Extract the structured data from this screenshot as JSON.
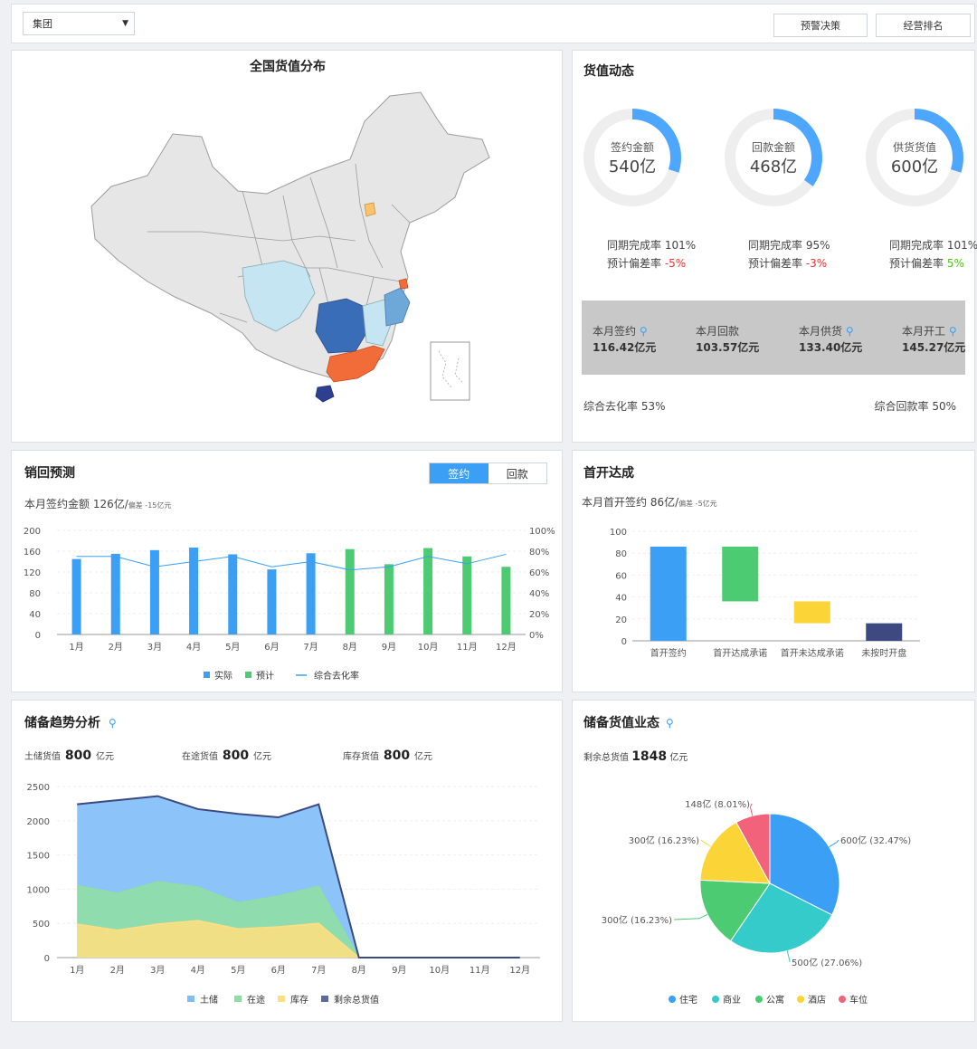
{
  "toolbar": {
    "group_select": "集团",
    "btn_warning": "预警决策",
    "btn_ranking": "经营排名"
  },
  "map": {
    "title": "全国货值分布"
  },
  "value_dynamics": {
    "title": "货值动态",
    "rings": [
      {
        "label": "签约金额",
        "value": "540亿",
        "fraction": 0.3,
        "rate_label": "同期完成率 101%",
        "dev_prefix": "预计偏差率 ",
        "dev": "-5%",
        "dev_color": "#e53935"
      },
      {
        "label": "回款金额",
        "value": "468亿",
        "fraction": 0.35,
        "rate_label": "同期完成率 95%",
        "dev_prefix": "预计偏差率 ",
        "dev": "-3%",
        "dev_color": "#e53935"
      },
      {
        "label": "供货货值",
        "value": "600亿",
        "fraction": 0.3,
        "rate_label": "同期完成率 101%",
        "dev_prefix": "预计偏差率 ",
        "dev": "5%",
        "dev_color": "#52c41a"
      }
    ],
    "month_stats": [
      {
        "label": "本月签约",
        "value": "116.42亿元",
        "search": true
      },
      {
        "label": "本月回款",
        "value": "103.57亿元",
        "search": false
      },
      {
        "label": "本月供货",
        "value": "133.40亿元",
        "search": true
      },
      {
        "label": "本月开工",
        "value": "145.27亿元",
        "search": true
      }
    ],
    "footer_left": "综合去化率 53%",
    "footer_right": "综合回款率 50%"
  },
  "sales_forecast": {
    "title": "销回预测",
    "toggle": [
      "签约",
      "回款"
    ],
    "subtitle_main": "本月签约金额 126亿/",
    "subtitle_small": "偏差 -15亿元"
  },
  "first_open": {
    "title": "首开达成",
    "subtitle_main": "本月首开签约 86亿/",
    "subtitle_small": "偏差 -5亿元"
  },
  "reserve_trend": {
    "title": "储备趋势分析",
    "stats": [
      {
        "label": "土储货值",
        "value": "800",
        "unit": "亿元"
      },
      {
        "label": "在途货值",
        "value": "800",
        "unit": "亿元"
      },
      {
        "label": "库存货值",
        "value": "800",
        "unit": "亿元"
      }
    ]
  },
  "reserve_status": {
    "title": "储备货值业态",
    "subtitle_label": "剩余总货值",
    "subtitle_value": "1848",
    "subtitle_unit": "亿元"
  },
  "chart_data": [
    {
      "type": "bar",
      "title": "销回预测",
      "categories": [
        "1月",
        "2月",
        "3月",
        "4月",
        "5月",
        "6月",
        "7月",
        "8月",
        "9月",
        "10月",
        "11月",
        "12月"
      ],
      "series": [
        {
          "name": "实际",
          "values": [
            145,
            155,
            162,
            167,
            154,
            125,
            156,
            null,
            null,
            null,
            null,
            null
          ],
          "color": "#3a9ff5"
        },
        {
          "name": "预计",
          "values": [
            null,
            null,
            null,
            null,
            null,
            null,
            null,
            164,
            135,
            166,
            150,
            130
          ],
          "color": "#4ccb73"
        },
        {
          "name": "综合去化率",
          "type": "line",
          "axis": "right",
          "values": [
            75,
            75,
            65,
            70,
            75,
            65,
            70,
            62,
            65,
            75,
            68,
            77
          ],
          "color": "#3a9ff5"
        }
      ],
      "ylim": [
        0,
        200
      ],
      "yticks": [
        0,
        40,
        80,
        120,
        160,
        200
      ],
      "y2lim": [
        0,
        100
      ],
      "y2ticks": [
        "0%",
        "20%",
        "40%",
        "60%",
        "80%",
        "100%"
      ],
      "legend": "bottom"
    },
    {
      "type": "bar",
      "title": "首开达成",
      "categories": [
        "首开签约",
        "首开达成承诺",
        "首开未达成承诺",
        "未按时开盘"
      ],
      "bars": [
        {
          "low": 0,
          "high": 86,
          "color": "#3a9ff5"
        },
        {
          "low": 36,
          "high": 86,
          "color": "#4ccb73"
        },
        {
          "low": 16,
          "high": 36,
          "color": "#fbd437"
        },
        {
          "low": 0,
          "high": 16,
          "color": "#3d4a82"
        }
      ],
      "ylim": [
        0,
        100
      ],
      "yticks": [
        0,
        20,
        40,
        60,
        80,
        100
      ]
    },
    {
      "type": "area",
      "title": "储备趋势分析",
      "categories": [
        "1月",
        "2月",
        "3月",
        "4月",
        "5月",
        "6月",
        "7月",
        "8月",
        "9月",
        "10月",
        "11月",
        "12月"
      ],
      "series": [
        {
          "name": "土储",
          "values": [
            2240,
            2300,
            2360,
            2170,
            2100,
            2050,
            2240,
            0,
            0,
            0,
            0,
            0
          ],
          "color": "#7fbdf7"
        },
        {
          "name": "在途",
          "values": [
            1050,
            940,
            1110,
            1030,
            800,
            900,
            1040,
            0,
            0,
            0,
            0,
            0
          ],
          "color": "#8fdfa5"
        },
        {
          "name": "库存",
          "values": [
            490,
            400,
            490,
            540,
            420,
            450,
            500,
            0,
            0,
            0,
            0,
            0
          ],
          "color": "#fcdf82"
        },
        {
          "name": "剩余总货值",
          "type": "line",
          "values": [
            2240,
            2300,
            2360,
            2170,
            2100,
            2050,
            2240,
            0,
            0,
            0,
            0,
            0
          ],
          "color": "#3d4a82"
        }
      ],
      "ylim": [
        0,
        2500
      ],
      "yticks": [
        0,
        500,
        1000,
        1500,
        2000,
        2500
      ],
      "legend": "bottom"
    },
    {
      "type": "pie",
      "title": "储备货值业态",
      "slices": [
        {
          "name": "住宅",
          "value": 600,
          "label": "600亿 (32.47%)",
          "color": "#3a9ff5"
        },
        {
          "name": "商业",
          "value": 500,
          "label": "500亿 (27.06%)",
          "color": "#36cbcb"
        },
        {
          "name": "公寓",
          "value": 300,
          "label": "300亿 (16.23%)",
          "color": "#4ccb73"
        },
        {
          "name": "酒店",
          "value": 300,
          "label": "300亿 (16.23%)",
          "color": "#fbd437"
        },
        {
          "name": "车位",
          "value": 148,
          "label": "148亿 (8.01%)",
          "color": "#f2637b"
        }
      ],
      "legend": "bottom"
    }
  ]
}
